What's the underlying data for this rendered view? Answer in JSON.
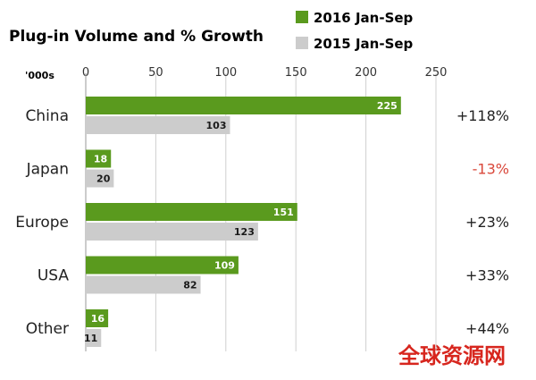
{
  "chart_data": {
    "type": "bar",
    "orientation": "horizontal",
    "title": "Plug-in Volume and % Growth",
    "unit_label": "'000s",
    "categories": [
      "China",
      "Japan",
      "Europe",
      "USA",
      "Other"
    ],
    "series": [
      {
        "name": "2016 Jan-Sep",
        "color": "#5a9a1e",
        "values": [
          225,
          18,
          151,
          109,
          16
        ]
      },
      {
        "name": "2015 Jan-Sep",
        "color": "#cccccc",
        "values": [
          103,
          20,
          123,
          82,
          11
        ]
      }
    ],
    "growth_labels": [
      "+118%",
      "-13%",
      "+23%",
      "+33%",
      "+44%"
    ],
    "growth_colors": [
      "#222222",
      "#d9473a",
      "#222222",
      "#222222",
      "#222222"
    ],
    "xlim": [
      0,
      250
    ],
    "xticks": [
      0,
      50,
      100,
      150,
      200,
      250
    ],
    "grid": true,
    "legend_position": "top-right"
  },
  "watermark": "全球资源网"
}
